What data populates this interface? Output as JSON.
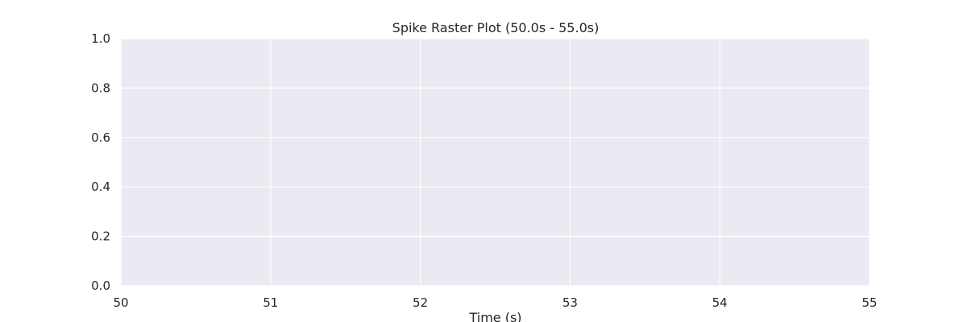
{
  "chart_data": {
    "type": "scatter",
    "title": "Spike Raster Plot (50.0s - 55.0s)",
    "xlabel": "Time (s)",
    "ylabel": "",
    "xlim": [
      50,
      55
    ],
    "ylim": [
      0,
      1
    ],
    "x_ticks": [
      "50",
      "51",
      "52",
      "53",
      "54",
      "55"
    ],
    "y_ticks": [
      "0.0",
      "0.2",
      "0.4",
      "0.6",
      "0.8",
      "1.0"
    ],
    "series": [],
    "grid": true,
    "background_color": "#eaeaf2",
    "grid_color": "#ffffff"
  }
}
